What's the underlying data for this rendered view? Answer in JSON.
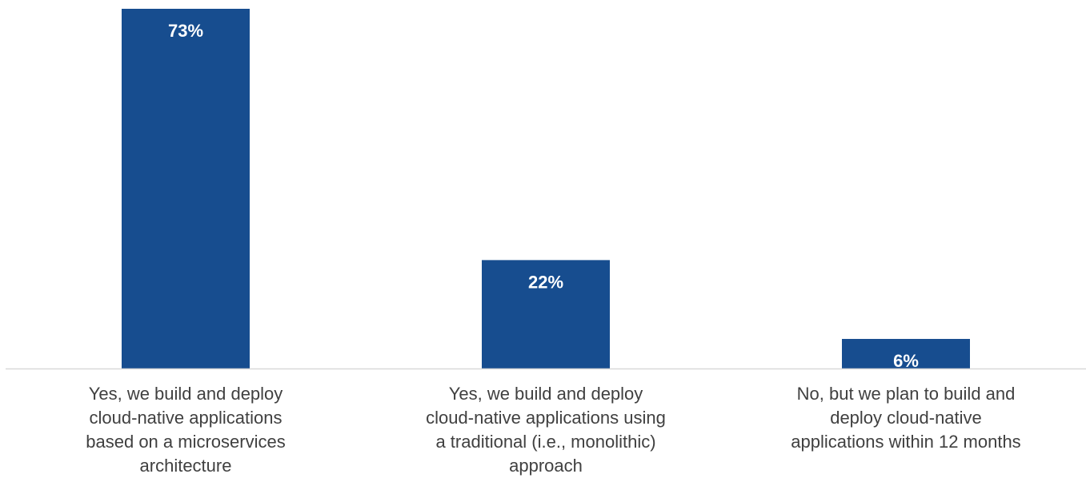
{
  "chart_data": {
    "type": "bar",
    "categories": [
      "Yes, we build and deploy cloud-native applications based on a microservices architecture",
      "Yes, we build and deploy cloud-native applications using a traditional (i.e., monolithic) approach",
      "No, but we plan to build and deploy cloud-native applications within 12 months"
    ],
    "values": [
      73,
      22,
      6
    ],
    "value_labels": [
      "73%",
      "22%",
      "6%"
    ],
    "title": "",
    "xlabel": "",
    "ylabel": "",
    "ylim": [
      0,
      73
    ],
    "grid": false,
    "legend": "none",
    "bar_color": "#174D8F",
    "axis_color": "#D9D9D9",
    "label_color": "#404040"
  }
}
